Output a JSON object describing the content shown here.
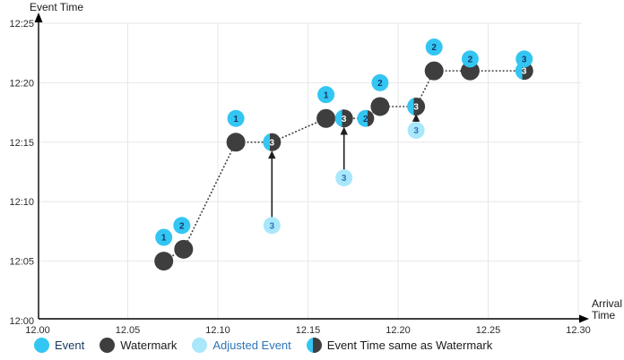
{
  "chart_data": {
    "type": "scatter",
    "title": "",
    "x_axis": {
      "label": "Arrival Time",
      "label_lines": [
        "Arrival",
        "Time"
      ],
      "tick_labels": [
        "12.00",
        "12.05",
        "12.10",
        "12.15",
        "12.20",
        "12.25",
        "12.30"
      ],
      "range_minutes": [
        0,
        30
      ],
      "grid": true
    },
    "y_axis": {
      "label": "Event Time",
      "tick_labels": [
        "12:00",
        "12:05",
        "12:10",
        "12:15",
        "12:20",
        "12:25"
      ],
      "range_minutes": [
        0,
        25
      ],
      "grid": true
    },
    "legend": [
      {
        "type": "event",
        "label": "Event"
      },
      {
        "type": "watermark",
        "label": "Watermark"
      },
      {
        "type": "adjusted",
        "label": "Adjusted Event"
      },
      {
        "type": "half",
        "label": "Event Time same as Watermark"
      }
    ],
    "points": [
      {
        "label": "1",
        "type": "event",
        "arrival": "12.07",
        "event_time": "12:07",
        "am": 7,
        "tm": 7
      },
      {
        "label": "",
        "type": "watermark",
        "arrival": "12.07",
        "event_time": "12:05",
        "am": 7,
        "tm": 5
      },
      {
        "label": "2",
        "type": "event",
        "arrival": "12.08",
        "event_time": "12:08",
        "am": 8,
        "tm": 8
      },
      {
        "label": "",
        "type": "watermark",
        "arrival": "12.08",
        "event_time": "12:06",
        "am": 8.1,
        "tm": 6
      },
      {
        "label": "1",
        "type": "event",
        "arrival": "12.11",
        "event_time": "12:17",
        "am": 11,
        "tm": 17
      },
      {
        "label": "",
        "type": "watermark",
        "arrival": "12.11",
        "event_time": "12:15",
        "am": 11,
        "tm": 15
      },
      {
        "label": "3",
        "type": "adjusted",
        "arrival": "12.13",
        "event_time": "12:08",
        "am": 13,
        "tm": 8
      },
      {
        "label": "3",
        "type": "half",
        "arrival": "12.13",
        "event_time": "12:15",
        "am": 13,
        "tm": 15
      },
      {
        "label": "1",
        "type": "event",
        "arrival": "12.16",
        "event_time": "12:19",
        "am": 16,
        "tm": 19
      },
      {
        "label": "",
        "type": "watermark",
        "arrival": "12.16",
        "event_time": "12:17",
        "am": 16,
        "tm": 17
      },
      {
        "label": "3",
        "type": "adjusted",
        "arrival": "12.17",
        "event_time": "12:12",
        "am": 17,
        "tm": 12
      },
      {
        "label": "3",
        "type": "half",
        "arrival": "12.17",
        "event_time": "12:17",
        "am": 17,
        "tm": 17
      },
      {
        "label": "2",
        "type": "half-cyan",
        "arrival": "12.18",
        "event_time": "12:17",
        "am": 18.2,
        "tm": 17
      },
      {
        "label": "2",
        "type": "event",
        "arrival": "12.19",
        "event_time": "12:20",
        "am": 19,
        "tm": 20
      },
      {
        "label": "",
        "type": "watermark",
        "arrival": "12.19",
        "event_time": "12:18",
        "am": 19,
        "tm": 18
      },
      {
        "label": "3",
        "type": "adjusted",
        "arrival": "12.21",
        "event_time": "12:16",
        "am": 21,
        "tm": 16
      },
      {
        "label": "3",
        "type": "half",
        "arrival": "12.21",
        "event_time": "12:18",
        "am": 21,
        "tm": 18
      },
      {
        "label": "2",
        "type": "event",
        "arrival": "12.22",
        "event_time": "12:23",
        "am": 22,
        "tm": 23
      },
      {
        "label": "",
        "type": "watermark",
        "arrival": "12.22",
        "event_time": "12:21",
        "am": 22,
        "tm": 21
      },
      {
        "label": "2",
        "type": "event",
        "arrival": "12.24",
        "event_time": "12:22",
        "am": 24,
        "tm": 22
      },
      {
        "label": "",
        "type": "watermark",
        "arrival": "12.24",
        "event_time": "12:21",
        "am": 24,
        "tm": 21
      },
      {
        "label": "3",
        "type": "half",
        "arrival": "12.27",
        "event_time": "12:21",
        "am": 27,
        "tm": 21
      },
      {
        "label": "3",
        "type": "event",
        "arrival": "12.27",
        "event_time": "12:22",
        "am": 27,
        "tm": 22
      }
    ],
    "watermark_line": [
      {
        "am": 7,
        "tm": 5
      },
      {
        "am": 8.1,
        "tm": 6
      },
      {
        "am": 11,
        "tm": 15
      },
      {
        "am": 13,
        "tm": 15
      },
      {
        "am": 16,
        "tm": 17
      },
      {
        "am": 17,
        "tm": 17
      },
      {
        "am": 18.2,
        "tm": 17
      },
      {
        "am": 19,
        "tm": 18
      },
      {
        "am": 21,
        "tm": 18
      },
      {
        "am": 22,
        "tm": 21
      },
      {
        "am": 24,
        "tm": 21
      },
      {
        "am": 27,
        "tm": 21
      }
    ],
    "adjustment_arrows": [
      {
        "am": 13,
        "from_tm": 8.7,
        "to_tm": 14.3
      },
      {
        "am": 17,
        "from_tm": 12.6,
        "to_tm": 16.3
      },
      {
        "am": 21,
        "from_tm": 16.6,
        "to_tm": 17.4
      },
      {
        "am": 26.75,
        "from_tm": 20.8,
        "to_tm": 21.8
      }
    ]
  },
  "colors": {
    "event_fill": "#33C6F2",
    "event_label": "#14386B",
    "watermark_fill": "#3E3E3E",
    "adjusted_fill": "#A9E7FB",
    "adjusted_label": "#2E75B6",
    "half_label": "#FFFFFF",
    "grid": "#E7E7E7",
    "axis": "#000000",
    "tick_text": "#2B2B2B",
    "dotted_line": "#4A4A4A",
    "arrow": "#1F1F1F",
    "legend_event_text": "#17375E",
    "legend_text": "#1A1A1A",
    "legend_adjusted_text": "#2E75B6"
  }
}
